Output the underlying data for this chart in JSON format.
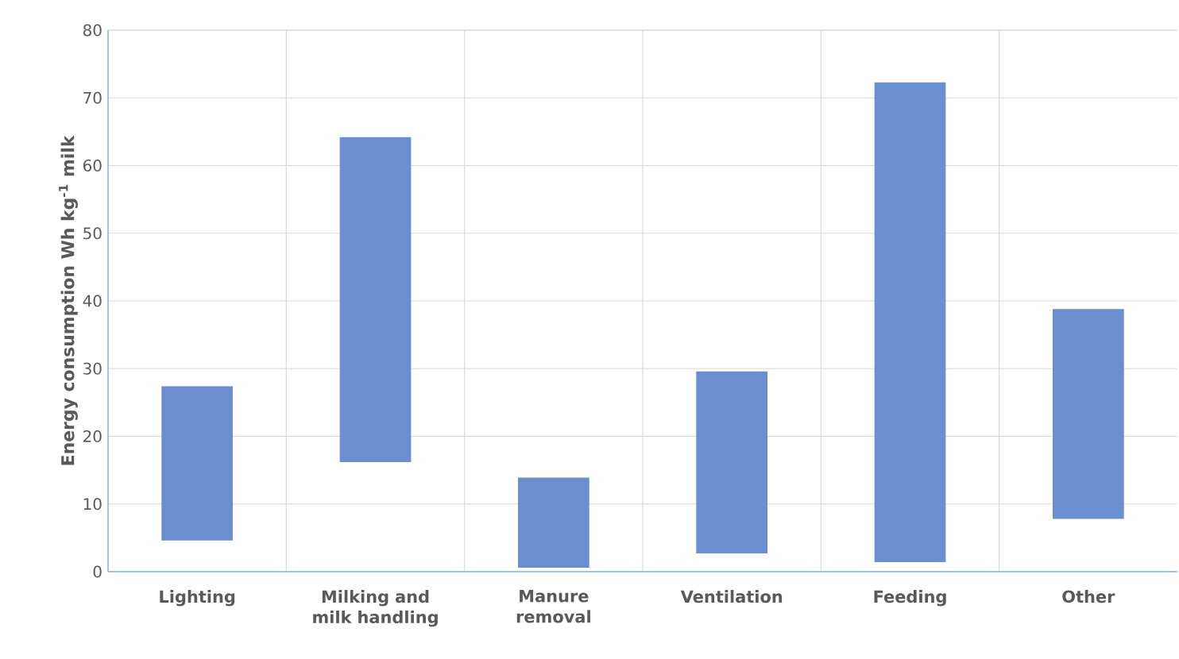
{
  "chart_data": {
    "type": "bar",
    "ylabel": "Energy consumption Wh kg$^{-1}$ milk",
    "categories": [
      "Lighting",
      "Milking and milk handling",
      "Manure removal",
      "Ventilation",
      "Feeding",
      "Other"
    ],
    "base": [
      4.6,
      16.2,
      0.6,
      2.7,
      1.4,
      7.8
    ],
    "values": [
      22.8,
      48.0,
      13.3,
      26.9,
      70.9,
      31.0
    ],
    "color": "#6a8ecf",
    "ylim": [
      0,
      80
    ],
    "yticks": [
      0,
      10,
      20,
      30,
      40,
      50,
      60,
      70,
      80
    ],
    "grid": true
  }
}
